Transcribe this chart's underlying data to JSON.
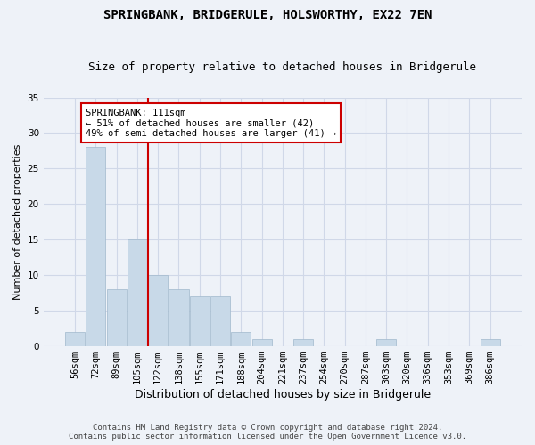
{
  "title": "SPRINGBANK, BRIDGERULE, HOLSWORTHY, EX22 7EN",
  "subtitle": "Size of property relative to detached houses in Bridgerule",
  "xlabel": "Distribution of detached houses by size in Bridgerule",
  "ylabel": "Number of detached properties",
  "categories": [
    "56sqm",
    "72sqm",
    "89sqm",
    "105sqm",
    "122sqm",
    "138sqm",
    "155sqm",
    "171sqm",
    "188sqm",
    "204sqm",
    "221sqm",
    "237sqm",
    "254sqm",
    "270sqm",
    "287sqm",
    "303sqm",
    "320sqm",
    "336sqm",
    "353sqm",
    "369sqm",
    "386sqm"
  ],
  "values": [
    2,
    28,
    8,
    15,
    10,
    8,
    7,
    7,
    2,
    1,
    0,
    1,
    0,
    0,
    0,
    1,
    0,
    0,
    0,
    0,
    1
  ],
  "bar_color": "#c8d9e8",
  "bar_edge_color": "#a0b8cc",
  "grid_color": "#d0d8e8",
  "background_color": "#eef2f8",
  "annotation_box_text": "SPRINGBANK: 111sqm\n← 51% of detached houses are smaller (42)\n49% of semi-detached houses are larger (41) →",
  "annotation_box_color": "#ffffff",
  "annotation_box_edge_color": "#cc0000",
  "vline_color": "#cc0000",
  "vline_x": 3.5,
  "ylim": [
    0,
    35
  ],
  "yticks": [
    0,
    5,
    10,
    15,
    20,
    25,
    30,
    35
  ],
  "footer_line1": "Contains HM Land Registry data © Crown copyright and database right 2024.",
  "footer_line2": "Contains public sector information licensed under the Open Government Licence v3.0.",
  "title_fontsize": 10,
  "subtitle_fontsize": 9,
  "xlabel_fontsize": 9,
  "ylabel_fontsize": 8,
  "tick_fontsize": 7.5,
  "annotation_fontsize": 7.5,
  "footer_fontsize": 6.5
}
